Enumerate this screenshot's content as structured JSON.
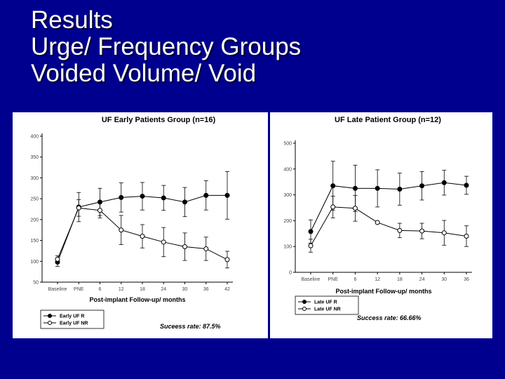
{
  "slide": {
    "title_lines": [
      "Results",
      "Urge/ Frequency Groups",
      "Voided Volume/ Void"
    ],
    "background_color": "#00008f",
    "title_color": "#ffffff"
  },
  "chart_data": [
    {
      "type": "line",
      "title": "UF Early Patients Group (n=16)",
      "xlabel": "Post-implant Follow-up/ months",
      "ylabel": "",
      "categories": [
        "Baseline",
        "PNE",
        "6",
        "12",
        "18",
        "24",
        "30",
        "36",
        "42"
      ],
      "ylim": [
        50,
        400
      ],
      "yticks": [
        50,
        100,
        150,
        200,
        250,
        300,
        350,
        400
      ],
      "grid": false,
      "legend_position": "bottom-left",
      "series": [
        {
          "name": "Early UF R",
          "marker": "filled-circle",
          "values": [
            98,
            230,
            242,
            253,
            256,
            252,
            242,
            258,
            258
          ],
          "errors": [
            10,
            35,
            33,
            35,
            33,
            30,
            35,
            35,
            57
          ]
        },
        {
          "name": "Early UF NR",
          "marker": "open-circle",
          "values": [
            105,
            228,
            222,
            175,
            160,
            146,
            135,
            130,
            104
          ],
          "errors": [
            8,
            20,
            18,
            35,
            28,
            35,
            33,
            28,
            20
          ]
        }
      ],
      "annotation": "Suceess rate: 87.5%"
    },
    {
      "type": "line",
      "title": "UF Late Patient Group (n=12)",
      "xlabel": "Post-implant Follow-up/ months",
      "ylabel": "",
      "categories": [
        "Baseline",
        "PNE",
        "6",
        "12",
        "18",
        "24",
        "30",
        "36"
      ],
      "ylim": [
        0,
        500
      ],
      "yticks": [
        0,
        100,
        200,
        300,
        400,
        500
      ],
      "grid": false,
      "legend_position": "bottom-left",
      "series": [
        {
          "name": "Late UF R",
          "marker": "filled-circle",
          "values": [
            158,
            335,
            325,
            325,
            322,
            335,
            347,
            337
          ],
          "errors": [
            45,
            95,
            90,
            72,
            62,
            55,
            48,
            35
          ]
        },
        {
          "name": "Late UF NR",
          "marker": "open-circle",
          "values": [
            103,
            253,
            248,
            193,
            162,
            160,
            153,
            140
          ],
          "errors": [
            25,
            42,
            50,
            0,
            28,
            30,
            48,
            40
          ]
        }
      ],
      "annotation": "Success rate: 66.66%"
    }
  ]
}
